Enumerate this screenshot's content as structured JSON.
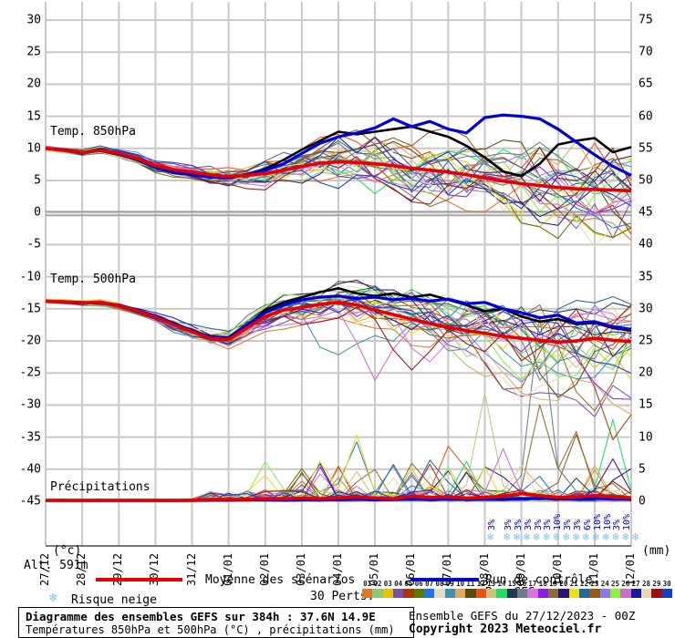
{
  "title_box": {
    "line1": "Diagramme des ensembles GEFS sur 384h : 37.6N 14.9E",
    "line2": "Températures 850hPa et 500hPa (°C) , précipitations (mm)"
  },
  "footer": {
    "run_info": "Ensemble GEFS du 27/12/2023 - 00Z",
    "copyright": "Copyright 2023 Meteociel.fr"
  },
  "axis": {
    "unit_left": "(°c)",
    "unit_right": "(mm)",
    "alt_label": "Alt. 591m",
    "left_ticks": [
      30,
      25,
      20,
      15,
      10,
      5,
      0,
      -5,
      -10,
      -15,
      -20,
      -25,
      -30,
      -35,
      -40,
      -45
    ],
    "right_ticks": [
      75,
      70,
      65,
      60,
      55,
      50,
      45,
      40,
      35,
      30,
      25,
      20,
      15,
      10,
      5,
      0
    ],
    "dates": [
      "27/12",
      "28/12",
      "29/12",
      "30/12",
      "31/12",
      "01/01",
      "02/01",
      "03/01",
      "04/01",
      "05/01",
      "06/01",
      "07/01",
      "08/01",
      "09/01",
      "10/01",
      "11/01",
      "12/01"
    ]
  },
  "panel_labels": {
    "t850": "Temp. 850hPa",
    "t500": "Temp. 500hPa",
    "precip": "Précipitations"
  },
  "legend": {
    "mean_label": "Moyenne des scénarios",
    "mean_color": "#e60000",
    "control_label": "Run de contrôle",
    "control_color": "#0000dd",
    "gfs_label": "Run GFS",
    "gfs_color": "#000000",
    "perts_label": "30 Perts.",
    "snow_label": "Risque neige"
  },
  "members": {
    "numbers": [
      "01",
      "02",
      "03",
      "04",
      "05",
      "06",
      "07",
      "08",
      "09",
      "10",
      "11",
      "12",
      "13",
      "14",
      "15",
      "16",
      "17",
      "18",
      "19",
      "20",
      "21",
      "22",
      "23",
      "24",
      "25",
      "26",
      "27",
      "28",
      "29",
      "30"
    ],
    "colors": [
      "#e07828",
      "#8cc878",
      "#e8c400",
      "#7a4fb4",
      "#a93705",
      "#5a7a00",
      "#1c74e8",
      "#e4dcc0",
      "#3a92b4",
      "#e0a860",
      "#5a4a10",
      "#f05010",
      "#ccc080",
      "#20dc60",
      "#1e3a52",
      "#6a7e8c",
      "#e070e0",
      "#8a20e8",
      "#8a7030",
      "#2a1478",
      "#efde14",
      "#2068a8",
      "#96581c",
      "#8a7ae8",
      "#8cf03c",
      "#d06cc4",
      "#1a1a9e",
      "#e6d8ae",
      "#9e1010",
      "#1240c8"
    ]
  },
  "snow_markers": {
    "first": {
      "x": 540,
      "pct": "3%"
    },
    "row_x_start": 558,
    "row_step": 10.85,
    "pcts": [
      "3%",
      "3%",
      "3%",
      "3%",
      "3%",
      "10%",
      "3%",
      "3%",
      "6%",
      "10%",
      "10%",
      "3%",
      "10%"
    ]
  },
  "chart_data": {
    "type": "line",
    "x_step_hours": 12,
    "n_points": 33,
    "dates": [
      "27/12",
      "28/12",
      "29/12",
      "30/12",
      "31/12",
      "01/01",
      "02/01",
      "03/01",
      "04/01",
      "05/01",
      "06/01",
      "07/01",
      "08/01",
      "09/01",
      "10/01",
      "11/01",
      "12/01"
    ],
    "ylim_temp_c": [
      -45,
      30
    ],
    "ylim_precip_mm": [
      0,
      75
    ],
    "series": [
      {
        "name": "Moyenne des scénarios",
        "panel": "t850",
        "color": "#e60000",
        "width": 3.6,
        "values": [
          10.0,
          9.7,
          9.3,
          9.7,
          9.2,
          8.4,
          7.3,
          6.7,
          6.3,
          5.9,
          5.6,
          5.8,
          6.1,
          6.6,
          7.2,
          7.7,
          7.9,
          7.8,
          7.6,
          7.3,
          6.9,
          6.6,
          6.3,
          5.9,
          5.4,
          4.9,
          4.5,
          4.2,
          3.9,
          3.7,
          3.6,
          3.5,
          3.4
        ]
      },
      {
        "name": "Run de contrôle",
        "panel": "t850",
        "color": "#0000dd",
        "width": 3.2,
        "values": [
          10.0,
          9.8,
          9.2,
          9.8,
          9.1,
          8.2,
          7.0,
          6.2,
          5.9,
          5.5,
          5.4,
          5.9,
          6.6,
          7.6,
          9.2,
          10.8,
          11.8,
          12.4,
          13.2,
          14.6,
          13.4,
          14.2,
          13.0,
          12.4,
          14.8,
          15.2,
          15.0,
          14.6,
          13.0,
          11.0,
          9.0,
          7.2,
          5.8
        ]
      },
      {
        "name": "Run GFS",
        "panel": "t850",
        "color": "#000000",
        "width": 2.6,
        "values": [
          10.0,
          9.8,
          9.4,
          9.6,
          9.0,
          8.3,
          7.1,
          6.4,
          6.1,
          5.7,
          5.5,
          6.0,
          6.8,
          8.2,
          9.8,
          11.2,
          12.6,
          12.2,
          12.6,
          13.0,
          13.4,
          12.6,
          11.8,
          10.4,
          8.6,
          6.4,
          5.7,
          7.6,
          10.6,
          11.2,
          11.6,
          9.4,
          10.2
        ]
      },
      {
        "name": "Moyenne des scénarios",
        "panel": "t500",
        "color": "#e60000",
        "width": 3.6,
        "values": [
          -13.8,
          -13.9,
          -14.1,
          -14.0,
          -14.5,
          -15.3,
          -16.3,
          -17.5,
          -18.6,
          -19.6,
          -19.8,
          -18.0,
          -16.2,
          -15.2,
          -14.8,
          -14.3,
          -14.0,
          -14.4,
          -15.2,
          -15.9,
          -16.6,
          -17.3,
          -17.9,
          -18.4,
          -18.8,
          -19.3,
          -19.6,
          -19.9,
          -20.2,
          -20.0,
          -19.6,
          -19.9,
          -20.1
        ]
      },
      {
        "name": "Run de contrôle",
        "panel": "t500",
        "color": "#0000dd",
        "width": 3.2,
        "values": [
          -13.8,
          -13.9,
          -14.0,
          -14.1,
          -14.4,
          -15.2,
          -16.1,
          -17.3,
          -18.4,
          -19.4,
          -19.5,
          -17.6,
          -15.6,
          -14.4,
          -13.6,
          -13.2,
          -13.0,
          -13.4,
          -13.2,
          -13.6,
          -13.4,
          -13.8,
          -13.5,
          -14.2,
          -14.0,
          -15.0,
          -15.6,
          -16.4,
          -16.0,
          -17.2,
          -17.0,
          -17.8,
          -18.2
        ]
      },
      {
        "name": "Run GFS",
        "panel": "t500",
        "color": "#000000",
        "width": 2.6,
        "values": [
          -13.8,
          -14.0,
          -14.2,
          -14.0,
          -14.6,
          -15.4,
          -16.4,
          -17.4,
          -18.5,
          -19.5,
          -19.6,
          -17.8,
          -15.2,
          -14.0,
          -13.2,
          -12.4,
          -11.8,
          -12.6,
          -13.0,
          -12.6,
          -13.2,
          -12.8,
          -13.6,
          -14.4,
          -15.4,
          -15.0,
          -16.2,
          -17.0,
          -16.6,
          -17.4,
          -17.2,
          -18.0,
          -18.4
        ]
      },
      {
        "name": "Moyenne des scénarios",
        "panel": "precip",
        "color": "#e60000",
        "width": 3.6,
        "values": [
          0.15,
          0.15,
          0.15,
          0.15,
          0.15,
          0.15,
          0.15,
          0.15,
          0.15,
          0.3,
          0.3,
          0.3,
          0.4,
          0.4,
          0.5,
          0.4,
          0.5,
          0.7,
          0.5,
          0.4,
          0.8,
          0.6,
          0.7,
          0.5,
          0.6,
          0.8,
          1.2,
          0.9,
          0.6,
          0.7,
          0.9,
          0.7,
          0.5
        ]
      },
      {
        "name": "Run de contrôle",
        "panel": "precip",
        "color": "#0000dd",
        "width": 3.0,
        "values": [
          0.1,
          0.1,
          0.1,
          0.1,
          0.1,
          0.1,
          0.1,
          0.1,
          0.1,
          0.15,
          0.15,
          0.2,
          0.2,
          0.15,
          0.2,
          0.2,
          0.25,
          0.3,
          0.2,
          0.25,
          0.3,
          0.25,
          0.3,
          0.35,
          0.3,
          0.25,
          0.4,
          0.45,
          0.35,
          0.3,
          0.45,
          0.35,
          0.3
        ]
      },
      {
        "name": "Run GFS",
        "panel": "precip",
        "color": "#000000",
        "width": 2.2,
        "values": [
          0.1,
          0.1,
          0.1,
          0.1,
          0.1,
          0.1,
          0.1,
          0.1,
          0.1,
          0.2,
          0.2,
          0.25,
          0.3,
          0.2,
          0.3,
          0.25,
          0.3,
          0.4,
          0.3,
          0.35,
          0.6,
          0.4,
          0.45,
          0.35,
          0.4,
          0.35,
          0.5,
          0.4,
          0.35,
          0.4,
          0.5,
          0.4,
          0.35
        ]
      }
    ],
    "ensemble": {
      "n_members": 30,
      "spread_850_up": [
        0.4,
        0.5,
        0.6,
        0.7,
        0.8,
        1.0,
        1.2,
        1.4,
        1.6,
        1.9,
        2.2,
        2.6,
        3.0,
        3.5,
        4.0,
        4.5,
        5.0,
        5.5,
        5.8,
        6.2,
        6.5,
        6.8,
        7.0,
        7.3,
        7.6,
        8.0,
        8.4,
        8.8,
        9.2,
        9.6,
        10.0,
        10.4,
        10.8
      ],
      "spread_850_dn": [
        0.4,
        0.5,
        0.6,
        0.7,
        0.8,
        1.0,
        1.2,
        1.4,
        1.6,
        1.8,
        2.0,
        2.3,
        2.6,
        3.0,
        3.4,
        3.8,
        4.2,
        4.6,
        5.0,
        5.4,
        5.8,
        6.1,
        6.4,
        6.7,
        7.0,
        7.2,
        7.4,
        7.6,
        7.8,
        8.0,
        8.2,
        8.4,
        8.6
      ],
      "spread_500_up": [
        0.3,
        0.4,
        0.5,
        0.6,
        0.7,
        0.8,
        1.0,
        1.2,
        1.4,
        1.6,
        1.8,
        2.1,
        2.4,
        2.7,
        3.0,
        3.3,
        3.6,
        3.9,
        4.2,
        4.4,
        4.6,
        4.8,
        5.0,
        5.2,
        5.4,
        5.6,
        5.8,
        6.0,
        6.2,
        6.4,
        6.6,
        6.8,
        7.0
      ],
      "spread_500_dn": [
        0.3,
        0.4,
        0.5,
        0.6,
        0.7,
        0.9,
        1.1,
        1.3,
        1.5,
        1.8,
        2.1,
        2.5,
        2.9,
        3.4,
        3.9,
        4.4,
        4.9,
        5.4,
        5.9,
        6.4,
        6.9,
        7.4,
        7.9,
        8.4,
        8.9,
        9.4,
        9.9,
        10.4,
        10.9,
        11.4,
        11.9,
        12.4,
        12.9
      ],
      "t500_dips": [
        {
          "m": 11,
          "k": 28,
          "a": 12
        },
        {
          "m": 19,
          "k": 30,
          "a": 16
        },
        {
          "m": 16,
          "k": 27,
          "a": 10
        },
        {
          "m": 5,
          "k": 31,
          "a": 12
        },
        {
          "m": 23,
          "k": 25,
          "a": 8
        },
        {
          "m": 29,
          "k": 20,
          "a": 7
        },
        {
          "m": 26,
          "k": 18,
          "a": 9
        },
        {
          "m": 9,
          "k": 16,
          "a": 8
        },
        {
          "m": 17,
          "k": 21,
          "a": 9
        }
      ],
      "precip_events": [
        {
          "m": 25,
          "k": 12,
          "a": 6
        },
        {
          "m": 21,
          "k": 12,
          "a": 4
        },
        {
          "m": 23,
          "k": 14,
          "a": 3
        },
        {
          "m": 21,
          "k": 17,
          "a": 9
        },
        {
          "m": 7,
          "k": 17,
          "a": 7.5
        },
        {
          "m": 22,
          "k": 19,
          "a": 4
        },
        {
          "m": 5,
          "k": 21,
          "a": 4
        },
        {
          "m": 12,
          "k": 22,
          "a": 8.5
        },
        {
          "m": 13,
          "k": 24,
          "a": 16
        },
        {
          "m": 26,
          "k": 25,
          "a": 8
        },
        {
          "m": 10,
          "k": 26,
          "a": 5
        },
        {
          "m": 16,
          "k": 27,
          "a": 28
        },
        {
          "m": 19,
          "k": 27,
          "a": 15
        },
        {
          "m": 19,
          "k": 29,
          "a": 10
        },
        {
          "m": 23,
          "k": 29,
          "a": 9
        },
        {
          "m": 14,
          "k": 31,
          "a": 12.5
        },
        {
          "m": 20,
          "k": 31,
          "a": 6.5
        },
        {
          "m": 27,
          "k": 32,
          "a": 5
        }
      ]
    }
  },
  "layout_colors": {
    "grid": "#c9c9c9",
    "zero_line": "#a6a6a6",
    "axis_line": "#4a4a4a",
    "snowflake": "#7cc4ea",
    "pct_text": "#0000cc"
  }
}
